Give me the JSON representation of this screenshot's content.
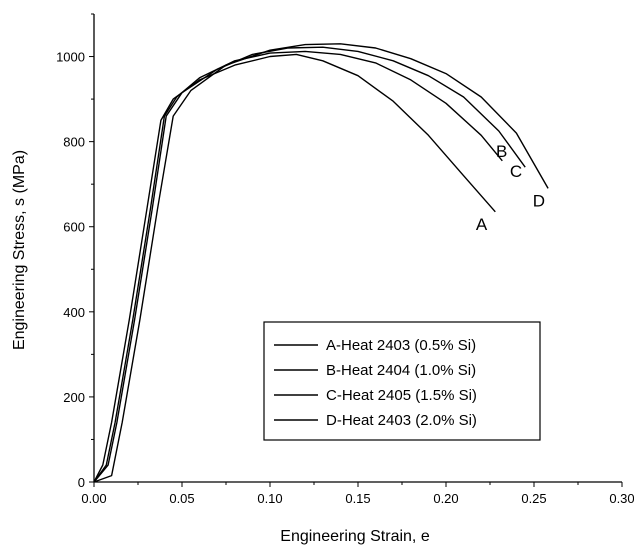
{
  "chart_data": {
    "type": "line",
    "title": "",
    "xlabel": "Engineering Strain, e",
    "ylabel": "Engineering Stress, s (MPa)",
    "xlim": [
      0.0,
      0.3
    ],
    "ylim": [
      0,
      1100
    ],
    "x_ticks": [
      "0.00",
      "0.05",
      "0.10",
      "0.15",
      "0.20",
      "0.25",
      "0.30"
    ],
    "y_ticks": [
      "0",
      "200",
      "400",
      "600",
      "800",
      "1000"
    ],
    "grid": false,
    "legend_position": "lower-right",
    "series": [
      {
        "name": "A-Heat 2403 (0.5% Si)",
        "end_label": "A",
        "points": [
          [
            0.0,
            0
          ],
          [
            0.005,
            40
          ],
          [
            0.01,
            140
          ],
          [
            0.02,
            380
          ],
          [
            0.03,
            640
          ],
          [
            0.038,
            850
          ],
          [
            0.045,
            900
          ],
          [
            0.06,
            945
          ],
          [
            0.08,
            980
          ],
          [
            0.1,
            1000
          ],
          [
            0.115,
            1005
          ],
          [
            0.13,
            990
          ],
          [
            0.15,
            955
          ],
          [
            0.17,
            895
          ],
          [
            0.19,
            815
          ],
          [
            0.21,
            720
          ],
          [
            0.228,
            635
          ]
        ]
      },
      {
        "name": "B-Heat 2404 (1.0% Si)",
        "end_label": "B",
        "points": [
          [
            0.0,
            0
          ],
          [
            0.007,
            40
          ],
          [
            0.012,
            140
          ],
          [
            0.022,
            380
          ],
          [
            0.032,
            640
          ],
          [
            0.04,
            860
          ],
          [
            0.047,
            905
          ],
          [
            0.06,
            950
          ],
          [
            0.08,
            990
          ],
          [
            0.1,
            1008
          ],
          [
            0.12,
            1012
          ],
          [
            0.14,
            1005
          ],
          [
            0.16,
            985
          ],
          [
            0.18,
            945
          ],
          [
            0.2,
            890
          ],
          [
            0.22,
            815
          ],
          [
            0.232,
            755
          ]
        ]
      },
      {
        "name": "C-Heat 2405 (1.5% Si)",
        "end_label": "C",
        "points": [
          [
            0.0,
            0
          ],
          [
            0.008,
            40
          ],
          [
            0.013,
            140
          ],
          [
            0.023,
            380
          ],
          [
            0.033,
            640
          ],
          [
            0.041,
            860
          ],
          [
            0.05,
            915
          ],
          [
            0.07,
            970
          ],
          [
            0.09,
            1005
          ],
          [
            0.11,
            1020
          ],
          [
            0.13,
            1022
          ],
          [
            0.15,
            1012
          ],
          [
            0.17,
            990
          ],
          [
            0.19,
            955
          ],
          [
            0.21,
            905
          ],
          [
            0.23,
            825
          ],
          [
            0.245,
            740
          ]
        ]
      },
      {
        "name": "D-Heat 2403 (2.0% Si)",
        "end_label": "D",
        "points": [
          [
            0.0,
            0
          ],
          [
            0.01,
            15
          ],
          [
            0.016,
            140
          ],
          [
            0.026,
            380
          ],
          [
            0.036,
            640
          ],
          [
            0.045,
            860
          ],
          [
            0.055,
            920
          ],
          [
            0.075,
            980
          ],
          [
            0.1,
            1015
          ],
          [
            0.12,
            1028
          ],
          [
            0.14,
            1030
          ],
          [
            0.16,
            1020
          ],
          [
            0.18,
            995
          ],
          [
            0.2,
            960
          ],
          [
            0.22,
            905
          ],
          [
            0.24,
            820
          ],
          [
            0.258,
            690
          ]
        ]
      }
    ]
  }
}
